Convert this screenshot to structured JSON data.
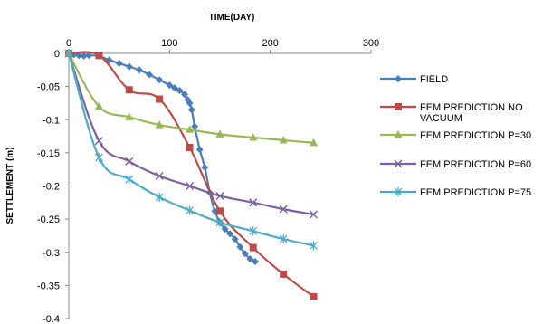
{
  "chart_data": {
    "type": "line",
    "xlabel": "TIME(DAY)",
    "ylabel": "SETTLEMENT  (m)",
    "xlim": [
      0,
      300
    ],
    "ylim": [
      -0.4,
      0
    ],
    "x_ticks": [
      "0",
      "100",
      "200",
      "300"
    ],
    "y_ticks": [
      "0",
      "-0.05",
      "-0.1",
      "-0.15",
      "-0.2",
      "-0.25",
      "-0.3",
      "-0.35",
      "-0.4"
    ],
    "x_axis_position": "top",
    "grid": false,
    "legend_position": "right",
    "series": [
      {
        "name": "FIELD",
        "color": "#4A7EBB",
        "marker": "diamond",
        "x": [
          0,
          5,
          10,
          15,
          20,
          30,
          40,
          50,
          60,
          70,
          80,
          90,
          100,
          105,
          110,
          115,
          118,
          120,
          122,
          125,
          130,
          135,
          140,
          145,
          150,
          155,
          160,
          165,
          170,
          175,
          180,
          185
        ],
        "y": [
          0,
          -0.002,
          -0.003,
          -0.004,
          -0.003,
          -0.004,
          -0.01,
          -0.015,
          -0.02,
          -0.025,
          -0.032,
          -0.04,
          -0.048,
          -0.052,
          -0.056,
          -0.062,
          -0.07,
          -0.075,
          -0.085,
          -0.11,
          -0.145,
          -0.172,
          -0.21,
          -0.238,
          -0.255,
          -0.265,
          -0.272,
          -0.28,
          -0.292,
          -0.302,
          -0.31,
          -0.314
        ]
      },
      {
        "name": "FEM PREDICTION NO VACUUM",
        "color": "#BE4B48",
        "marker": "square",
        "x": [
          0,
          30,
          60,
          90,
          120,
          150,
          183,
          213,
          243
        ],
        "y": [
          0,
          -0.003,
          -0.055,
          -0.069,
          -0.142,
          -0.238,
          -0.293,
          -0.333,
          -0.367
        ]
      },
      {
        "name": "FEM PREDICTION P=30",
        "color": "#98B954",
        "marker": "triangle",
        "x": [
          0,
          30,
          60,
          90,
          120,
          150,
          183,
          213,
          243
        ],
        "y": [
          0,
          -0.08,
          -0.096,
          -0.108,
          -0.115,
          -0.122,
          -0.127,
          -0.131,
          -0.135
        ]
      },
      {
        "name": "FEM PREDICTION P=60",
        "color": "#7D60A0",
        "marker": "x",
        "x": [
          0,
          30,
          60,
          90,
          120,
          150,
          183,
          213,
          243
        ],
        "y": [
          0,
          -0.132,
          -0.163,
          -0.185,
          -0.2,
          -0.215,
          -0.225,
          -0.235,
          -0.243
        ]
      },
      {
        "name": "FEM PREDICTION P=75",
        "color": "#4BACC6",
        "marker": "star",
        "x": [
          0,
          30,
          60,
          90,
          120,
          150,
          183,
          213,
          243
        ],
        "y": [
          0,
          -0.157,
          -0.19,
          -0.217,
          -0.237,
          -0.255,
          -0.268,
          -0.28,
          -0.29
        ]
      }
    ]
  },
  "legend": {
    "items": [
      {
        "lines": [
          "FIELD"
        ]
      },
      {
        "lines": [
          "FEM PREDICTION NO",
          "VACUUM"
        ]
      },
      {
        "lines": [
          "FEM PREDICTION P=30"
        ]
      },
      {
        "lines": [
          "FEM PREDICTION P=60"
        ]
      },
      {
        "lines": [
          "FEM PREDICTION P=75"
        ]
      }
    ]
  }
}
